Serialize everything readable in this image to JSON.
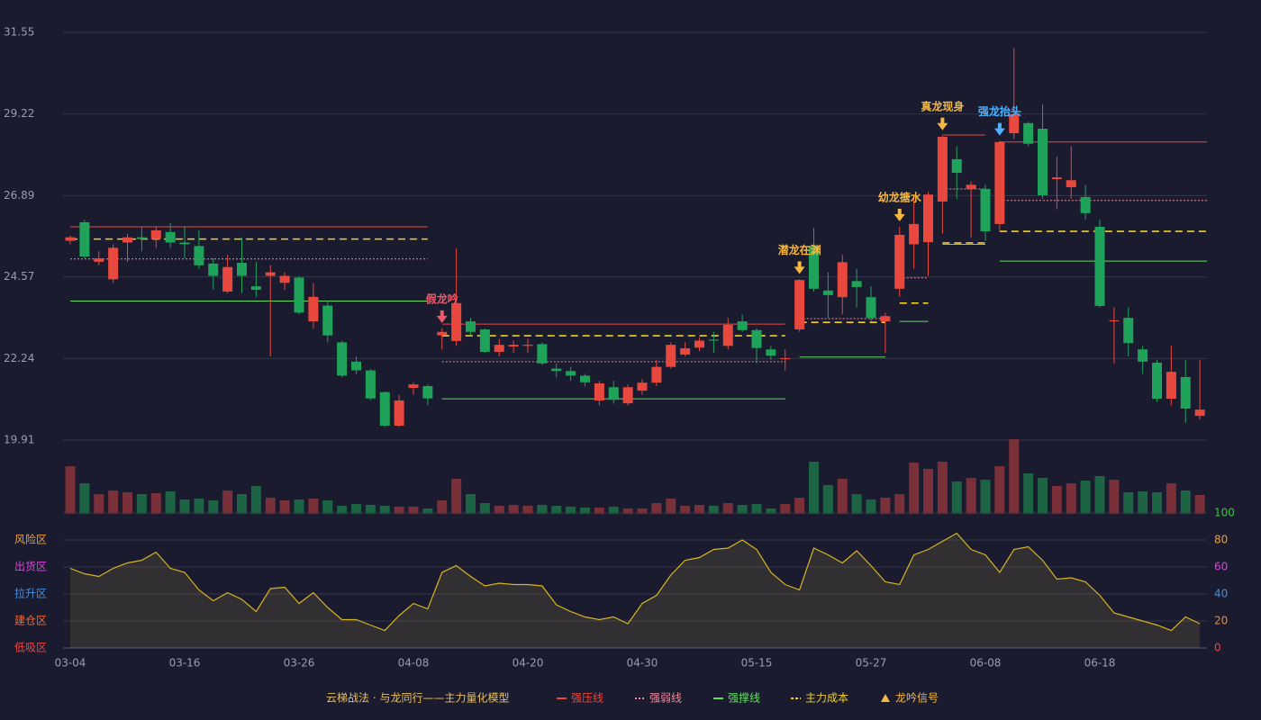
{
  "chart_data": {
    "type": "candlestick",
    "categories": [
      "03-04",
      null,
      null,
      null,
      null,
      null,
      null,
      null,
      "03-16",
      null,
      null,
      null,
      null,
      null,
      null,
      null,
      "03-26",
      null,
      null,
      null,
      null,
      null,
      null,
      null,
      "04-08",
      null,
      null,
      null,
      null,
      null,
      null,
      null,
      "04-20",
      null,
      null,
      null,
      null,
      null,
      null,
      null,
      "04-30",
      null,
      null,
      null,
      null,
      null,
      null,
      null,
      "05-15",
      null,
      null,
      null,
      null,
      null,
      null,
      null,
      "05-27",
      null,
      null,
      null,
      null,
      null,
      null,
      null,
      "06-08",
      null,
      null,
      null,
      null,
      null,
      null,
      null,
      "06-18",
      null,
      null,
      null,
      null,
      null,
      null,
      null
    ],
    "open": [
      25.6,
      26.13,
      25.0,
      24.5,
      25.55,
      25.7,
      25.65,
      25.85,
      25.55,
      25.45,
      24.95,
      24.15,
      24.97,
      24.3,
      24.6,
      24.4,
      24.55,
      23.3,
      23.75,
      22.7,
      22.15,
      21.9,
      21.28,
      20.32,
      21.4,
      21.45,
      22.9,
      22.74,
      23.3,
      23.07,
      22.43,
      22.58,
      22.6,
      22.65,
      21.95,
      21.88,
      21.75,
      21.04,
      21.42,
      20.96,
      21.32,
      21.55,
      22.0,
      22.35,
      22.55,
      22.78,
      22.6,
      23.3,
      23.05,
      22.5,
      22.22,
      23.07,
      25.46,
      24.18,
      23.99,
      24.45,
      23.99,
      23.3,
      24.23,
      25.5,
      25.56,
      26.72,
      27.93,
      27.08,
      27.08,
      26.08,
      28.67,
      28.96,
      28.8,
      27.36,
      27.13,
      26.85,
      26.0,
      23.3,
      23.4,
      22.5,
      22.12,
      21.09,
      21.71,
      20.6
    ],
    "close": [
      25.7,
      25.15,
      25.1,
      25.4,
      25.7,
      25.65,
      25.9,
      25.55,
      25.5,
      24.9,
      24.6,
      24.85,
      24.6,
      24.2,
      24.7,
      24.6,
      23.55,
      24.0,
      22.9,
      21.75,
      21.9,
      21.1,
      20.32,
      21.04,
      21.5,
      21.1,
      23.0,
      23.82,
      23.0,
      22.43,
      22.63,
      22.63,
      22.63,
      22.1,
      21.88,
      21.75,
      21.56,
      21.53,
      21.06,
      21.42,
      21.55,
      22.0,
      22.63,
      22.53,
      22.75,
      22.75,
      23.2,
      23.05,
      22.54,
      22.32,
      22.25,
      24.48,
      24.23,
      24.05,
      24.99,
      24.28,
      23.4,
      23.45,
      25.77,
      26.08,
      26.92,
      28.57,
      27.54,
      27.2,
      25.87,
      28.42,
      29.22,
      28.37,
      26.9,
      27.41,
      27.33,
      26.39,
      23.74,
      23.33,
      22.68,
      22.15,
      21.09,
      21.86,
      20.81,
      20.78
    ],
    "high": [
      25.75,
      26.2,
      25.3,
      25.5,
      25.8,
      26.0,
      26.0,
      26.1,
      26.0,
      25.9,
      25.1,
      25.2,
      25.7,
      25.0,
      24.9,
      24.7,
      24.6,
      24.4,
      23.9,
      22.75,
      22.3,
      21.95,
      21.3,
      21.2,
      21.55,
      21.5,
      23.1,
      25.38,
      23.4,
      23.1,
      22.8,
      22.75,
      22.8,
      22.7,
      22.1,
      22.0,
      21.8,
      21.6,
      21.6,
      21.5,
      21.65,
      22.2,
      22.7,
      22.7,
      22.85,
      23.0,
      23.4,
      23.5,
      23.1,
      22.6,
      22.5,
      24.5,
      25.97,
      24.7,
      25.2,
      24.8,
      24.3,
      23.55,
      26.0,
      26.9,
      27.0,
      28.6,
      28.3,
      27.3,
      27.2,
      28.45,
      31.1,
      29.0,
      29.5,
      28.0,
      28.3,
      27.2,
      26.2,
      23.7,
      23.7,
      22.6,
      22.2,
      22.6,
      22.2,
      22.2
    ],
    "low": [
      25.5,
      25.1,
      24.9,
      24.4,
      25.0,
      25.3,
      25.4,
      25.4,
      25.1,
      24.8,
      24.2,
      24.1,
      24.1,
      24.0,
      22.3,
      24.2,
      23.5,
      23.1,
      22.7,
      21.7,
      21.8,
      21.05,
      20.28,
      20.28,
      21.2,
      20.9,
      22.5,
      22.6,
      22.9,
      22.4,
      22.3,
      22.4,
      22.4,
      22.05,
      21.7,
      21.6,
      21.45,
      20.9,
      20.95,
      20.9,
      21.2,
      21.45,
      21.95,
      22.3,
      22.45,
      22.4,
      22.5,
      23.0,
      22.1,
      22.2,
      21.9,
      23.0,
      24.15,
      23.4,
      23.5,
      23.7,
      23.3,
      22.4,
      24.0,
      24.8,
      24.6,
      25.8,
      26.8,
      25.7,
      25.6,
      25.85,
      28.5,
      28.3,
      26.8,
      26.5,
      26.8,
      26.2,
      23.7,
      22.1,
      22.3,
      21.8,
      21.0,
      20.9,
      20.4,
      20.5
    ],
    "up_color": "#e8483e",
    "down_color": "#1fa35a",
    "ylim": [
      19.91,
      31.55
    ],
    "yticks": [
      19.91,
      22.24,
      24.57,
      26.89,
      29.22,
      31.55
    ],
    "grid": true,
    "volume": [
      53,
      34,
      22,
      26,
      24,
      22,
      23,
      25,
      16,
      17,
      15,
      26,
      22,
      31,
      18,
      15,
      16,
      17,
      15,
      9,
      11,
      10,
      9,
      8,
      8,
      6,
      15,
      39,
      22,
      12,
      9,
      10,
      9,
      10,
      9,
      8,
      7,
      7,
      8,
      6,
      6,
      12,
      17,
      9,
      10,
      9,
      12,
      10,
      11,
      6,
      11,
      18,
      58,
      32,
      39,
      22,
      16,
      18,
      22,
      57,
      50,
      58,
      36,
      40,
      38,
      53,
      83,
      45,
      40,
      31,
      34,
      37,
      42,
      38,
      24,
      25,
      24,
      34,
      26,
      21
    ],
    "volume_up_color": "#7a3038",
    "volume_down_color": "#1c6443",
    "level_lines": [
      {
        "name": "强压线",
        "color": "#e8483e",
        "dash": "none",
        "segments": [
          {
            "from": 0,
            "to": 25,
            "value": 26.0
          },
          {
            "from": 26,
            "to": 50,
            "value": 23.22
          },
          {
            "from": 61,
            "to": 64,
            "value": 28.62
          },
          {
            "from": 65,
            "to": 79,
            "value": 28.42
          }
        ]
      },
      {
        "name": "强弱线",
        "color": "#f08a9a",
        "dash": "2 2",
        "segments": [
          {
            "from": 0,
            "to": 25,
            "value": 25.08
          },
          {
            "from": 26,
            "to": 50,
            "value": 22.15
          },
          {
            "from": 51,
            "to": 57,
            "value": 23.38
          },
          {
            "from": 58,
            "to": 60,
            "value": 24.54
          },
          {
            "from": 61,
            "to": 64,
            "value": 27.08
          },
          {
            "from": 65,
            "to": 79,
            "value": 26.75
          }
        ]
      },
      {
        "name": "强撑线",
        "color": "#5fe05f",
        "dash": "none",
        "segments": [
          {
            "from": 0,
            "to": 25,
            "value": 23.88
          },
          {
            "from": 26,
            "to": 50,
            "value": 21.09
          },
          {
            "from": 51,
            "to": 57,
            "value": 22.28
          },
          {
            "from": 58,
            "to": 60,
            "value": 23.3
          },
          {
            "from": 61,
            "to": 64,
            "value": 25.5
          },
          {
            "from": 65,
            "to": 79,
            "value": 25.02
          }
        ]
      },
      {
        "name": "主力成本",
        "color": "#f5d020",
        "dash": "8 5",
        "segments": [
          {
            "from": 0,
            "to": 25,
            "value": 25.65
          },
          {
            "from": 26,
            "to": 50,
            "value": 22.89
          },
          {
            "from": 51,
            "to": 57,
            "value": 23.27
          },
          {
            "from": 58,
            "to": 60,
            "value": 23.82
          },
          {
            "from": 61,
            "to": 64,
            "value": 25.54
          },
          {
            "from": 65,
            "to": 79,
            "value": 25.87
          }
        ]
      }
    ],
    "signals": [
      {
        "at": 26,
        "label": "假龙吟",
        "color": "#ef5a6a"
      },
      {
        "at": 51,
        "label": "潜龙在渊",
        "color": "#f5b841"
      },
      {
        "at": 58,
        "label": "幼龙搪水",
        "color": "#f5b841"
      },
      {
        "at": 61,
        "label": "真龙现身",
        "color": "#f5b841"
      },
      {
        "at": 65,
        "label": "强龙抬头",
        "color": "#4db3ff"
      }
    ],
    "signal_legend": "龙吟信号",
    "signal_color": "#f5b841",
    "legend_title": "云梯战法 · 与龙同行——主力量化模型",
    "indicator": {
      "values": [
        59,
        55,
        53,
        59,
        63,
        65,
        71,
        59,
        56,
        43,
        35,
        41,
        36,
        27,
        44,
        45,
        33,
        41,
        30,
        21,
        21,
        17,
        13,
        24,
        33,
        29,
        56,
        61,
        53,
        46,
        48,
        47,
        47,
        46,
        32,
        27,
        23,
        21,
        23,
        18,
        33,
        39,
        54,
        65,
        67,
        73,
        74,
        80,
        73,
        56,
        47,
        43,
        74,
        69,
        63,
        72,
        61,
        49,
        47,
        69,
        73,
        79,
        85,
        73,
        69,
        56,
        73,
        75,
        65,
        51,
        52,
        49,
        39,
        26,
        23,
        20,
        17,
        13,
        23,
        18
      ],
      "color": "#d8b420",
      "ylim": [
        0,
        100
      ],
      "yticks": [
        {
          "value": 0,
          "color": "#ef4444"
        },
        {
          "value": 20,
          "color": "#f08a30"
        },
        {
          "value": 40,
          "color": "#4a90e2"
        },
        {
          "value": 60,
          "color": "#e040e0"
        },
        {
          "value": 80,
          "color": "#f0a030"
        },
        {
          "value": 100,
          "color": "#33cc33"
        }
      ],
      "zones": [
        {
          "value": 0,
          "label": "低吸区",
          "color": "#ef4444"
        },
        {
          "value": 20,
          "label": "建仓区",
          "color": "#f06a30"
        },
        {
          "value": 40,
          "label": "拉升区",
          "color": "#4a90e2"
        },
        {
          "value": 60,
          "label": "出货区",
          "color": "#e040e0"
        },
        {
          "value": 80,
          "label": "风险区",
          "color": "#f0a030"
        }
      ]
    }
  }
}
